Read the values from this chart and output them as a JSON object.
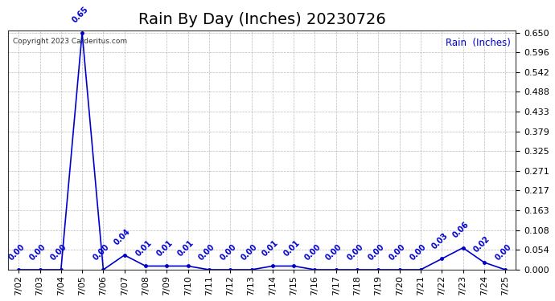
{
  "title": "Rain By Day (Inches) 20230726",
  "legend_label": "Rain  (Inches)",
  "copyright": "Copyright 2023 Carderitus.com",
  "dates": [
    "7/02",
    "7/03",
    "7/04",
    "7/05",
    "7/06",
    "7/07",
    "7/08",
    "7/09",
    "7/10",
    "7/11",
    "7/12",
    "7/13",
    "7/14",
    "7/15",
    "7/16",
    "7/17",
    "7/18",
    "7/19",
    "7/20",
    "7/21",
    "7/22",
    "7/23",
    "7/24",
    "7/25"
  ],
  "values": [
    0.0,
    0.0,
    0.0,
    0.65,
    0.0,
    0.04,
    0.01,
    0.01,
    0.01,
    0.0,
    0.0,
    0.0,
    0.01,
    0.01,
    0.0,
    0.0,
    0.0,
    0.0,
    0.0,
    0.0,
    0.03,
    0.06,
    0.02,
    0.0
  ],
  "line_color": "#0000cc",
  "label_color": "#0000cc",
  "background_color": "#ffffff",
  "grid_color": "#aaaaaa",
  "ylim": [
    0.0,
    0.65
  ],
  "yticks": [
    0.0,
    0.054,
    0.108,
    0.163,
    0.217,
    0.271,
    0.325,
    0.379,
    0.433,
    0.488,
    0.542,
    0.596,
    0.65
  ],
  "title_fontsize": 14,
  "label_fontsize": 7.0,
  "tick_fontsize": 8
}
